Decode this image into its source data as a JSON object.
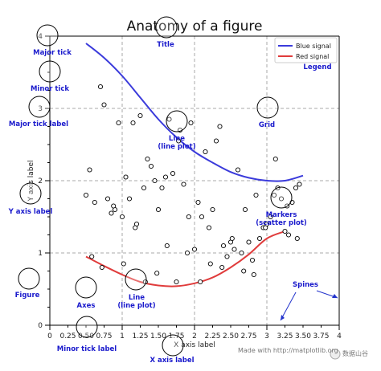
{
  "chart_data": {
    "type": "line",
    "title": "Anatomy of a figure",
    "xlabel": "X axis label",
    "ylabel": "Y axis label",
    "xlim": [
      0,
      4
    ],
    "ylim": [
      0,
      4
    ],
    "x_major_ticks": [
      0,
      1,
      2,
      3,
      4
    ],
    "x_major_labels": [
      "0",
      "1",
      "2",
      "3",
      "4"
    ],
    "x_minor_ticks": [
      0.25,
      0.5,
      0.75,
      1.25,
      1.5,
      1.75,
      2.25,
      2.5,
      2.75,
      3.25,
      3.5,
      3.75
    ],
    "x_minor_labels": [
      "0.25",
      "0.50",
      "0.75",
      "1.25",
      "1.50",
      "1.75",
      "2.25",
      "2.50",
      "2.75",
      "3.25",
      "3.50",
      "3.75"
    ],
    "y_major_ticks": [
      0,
      1,
      2,
      3,
      4
    ],
    "y_major_labels": [
      "0",
      "1",
      "2",
      "3",
      "4"
    ],
    "grid": true,
    "legend_position": "top-right",
    "series": [
      {
        "name": "Blue signal",
        "color": "#3b3bdb",
        "x": [
          0.5,
          0.75,
          1.0,
          1.25,
          1.5,
          1.75,
          2.0,
          2.25,
          2.5,
          2.75,
          3.0,
          3.25,
          3.5
        ],
        "y": [
          3.9,
          3.7,
          3.45,
          3.15,
          2.85,
          2.6,
          2.4,
          2.25,
          2.12,
          2.04,
          2.0,
          2.0,
          2.07
        ]
      },
      {
        "name": "Red signal",
        "color": "#e03c3c",
        "x": [
          0.5,
          0.75,
          1.0,
          1.25,
          1.5,
          1.75,
          2.0,
          2.25,
          2.5,
          2.75,
          3.0,
          3.25
        ],
        "y": [
          0.95,
          0.82,
          0.7,
          0.6,
          0.55,
          0.54,
          0.58,
          0.66,
          0.8,
          0.98,
          1.2,
          1.3
        ]
      },
      {
        "type": "scatter",
        "x": [
          0.5,
          0.55,
          0.62,
          0.7,
          0.75,
          0.8,
          0.85,
          0.9,
          0.95,
          1.0,
          1.05,
          1.1,
          1.15,
          1.2,
          1.25,
          1.3,
          1.35,
          1.4,
          1.45,
          1.5,
          1.55,
          1.6,
          1.65,
          1.7,
          1.75,
          1.8,
          1.85,
          1.9,
          1.95,
          2.0,
          2.05,
          2.1,
          2.15,
          2.2,
          2.25,
          2.3,
          2.35,
          2.4,
          2.45,
          2.5,
          2.55,
          2.6,
          2.65,
          2.7,
          2.75,
          2.8,
          2.85,
          2.9,
          2.95,
          3.0,
          3.05,
          3.1,
          3.15,
          3.2,
          3.25,
          3.3,
          3.35,
          3.4,
          3.45,
          0.58,
          0.72,
          0.88,
          1.02,
          1.18,
          1.32,
          1.48,
          1.62,
          1.78,
          1.92,
          2.08,
          2.22,
          2.38,
          2.52,
          2.68,
          2.82,
          2.98,
          3.12,
          3.28,
          3.42
        ],
        "y": [
          1.8,
          2.15,
          1.7,
          3.3,
          3.05,
          1.75,
          1.55,
          1.6,
          2.8,
          1.5,
          2.05,
          1.75,
          2.8,
          1.4,
          2.9,
          1.9,
          2.3,
          2.2,
          2.0,
          1.6,
          1.9,
          2.05,
          2.85,
          2.1,
          0.6,
          2.7,
          1.95,
          1.0,
          2.8,
          1.05,
          1.7,
          1.5,
          2.4,
          1.35,
          1.6,
          2.55,
          2.75,
          1.1,
          0.95,
          1.15,
          1.05,
          2.15,
          1.0,
          1.6,
          1.15,
          0.9,
          1.8,
          1.2,
          1.35,
          1.4,
          1.5,
          1.8,
          1.9,
          1.75,
          1.3,
          1.25,
          1.7,
          1.9,
          1.95,
          0.95,
          0.8,
          1.65,
          0.85,
          1.35,
          0.6,
          0.72,
          1.1,
          2.55,
          1.5,
          0.6,
          0.85,
          0.8,
          1.2,
          0.75,
          0.7,
          1.35,
          2.3,
          1.65,
          1.2
        ]
      }
    ],
    "annotations": [
      {
        "label": "Major tick",
        "target": [
          0,
          4
        ]
      },
      {
        "label": "Minor tick",
        "target": [
          0,
          3.75
        ]
      },
      {
        "label": "Major tick label",
        "target": [
          0,
          3
        ]
      },
      {
        "label": "Y axis label",
        "target": [
          0,
          1.85
        ]
      },
      {
        "label": "Figure"
      },
      {
        "label": "Axes",
        "target": [
          0.5,
          0.5
        ]
      },
      {
        "label": "Line\n(line plot)",
        "target": [
          1.75,
          2.85
        ]
      },
      {
        "label": "Line\n(line plot)",
        "target": [
          1.0,
          0.6
        ]
      },
      {
        "label": "Grid",
        "target": [
          3.0,
          3.0
        ]
      },
      {
        "label": "Markers\n(scatter plot)",
        "target": [
          3.2,
          1.75
        ]
      },
      {
        "label": "Spines"
      },
      {
        "label": "Legend"
      },
      {
        "label": "Title"
      },
      {
        "label": "Minor tick label",
        "target": [
          0.5,
          0
        ]
      },
      {
        "label": "X axis label",
        "target": [
          2.0,
          -0.3
        ]
      }
    ]
  },
  "watermark": {
    "left_text": "Made with http://matplotlib.org",
    "right_text": "数据山谷"
  }
}
